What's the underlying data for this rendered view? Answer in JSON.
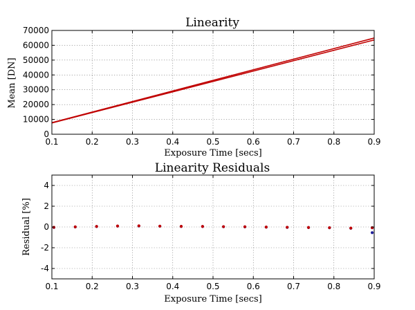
{
  "chart_data": [
    {
      "type": "line",
      "title": "Linearity",
      "xlabel": "Exposure Time [secs]",
      "ylabel": "Mean [DN]",
      "xlim": [
        0.1,
        0.9
      ],
      "ylim": [
        0,
        70000
      ],
      "xticks": [
        "0.1",
        "0.2",
        "0.3",
        "0.4",
        "0.5",
        "0.6",
        "0.7",
        "0.8",
        "0.9"
      ],
      "yticks": [
        "0",
        "10000",
        "20000",
        "30000",
        "40000",
        "50000",
        "60000",
        "70000"
      ],
      "grid": true,
      "series": [
        {
          "color": "#c00000",
          "x": [
            0.1,
            0.9
          ],
          "y": [
            7800,
            64900
          ]
        },
        {
          "color": "#c00000",
          "x": [
            0.1,
            0.9
          ],
          "y": [
            7600,
            63600
          ]
        }
      ]
    },
    {
      "type": "scatter",
      "title": "Linearity Residuals",
      "xlabel": "Exposure Time [secs]",
      "ylabel": "Residual [%]",
      "xlim": [
        0.1,
        0.9
      ],
      "ylim": [
        -5,
        5
      ],
      "xticks": [
        "0.1",
        "0.2",
        "0.3",
        "0.4",
        "0.5",
        "0.6",
        "0.7",
        "0.8",
        "0.9"
      ],
      "yticks": [
        "-4",
        "-2",
        "0",
        "2",
        "4"
      ],
      "grid": true,
      "series": [
        {
          "color": "#1f1f99",
          "x": [
            0.105,
            0.158,
            0.211,
            0.263,
            0.316,
            0.368,
            0.421,
            0.474,
            0.526,
            0.579,
            0.632,
            0.684,
            0.737,
            0.789,
            0.842,
            0.895,
            0.895
          ],
          "y": [
            -0.05,
            0.0,
            0.04,
            0.08,
            0.09,
            0.07,
            0.05,
            0.04,
            0.02,
            0.01,
            -0.02,
            -0.04,
            -0.06,
            -0.08,
            -0.13,
            -0.08,
            -0.55
          ]
        },
        {
          "color": "#c00000",
          "x": [
            0.105,
            0.158,
            0.211,
            0.263,
            0.316,
            0.368,
            0.421,
            0.474,
            0.526,
            0.579,
            0.632,
            0.684,
            0.737,
            0.789,
            0.842,
            0.895
          ],
          "y": [
            -0.03,
            0.01,
            0.05,
            0.09,
            0.11,
            0.08,
            0.06,
            0.05,
            0.03,
            0.02,
            -0.01,
            -0.03,
            -0.05,
            -0.07,
            -0.11,
            -0.07
          ]
        }
      ]
    }
  ]
}
